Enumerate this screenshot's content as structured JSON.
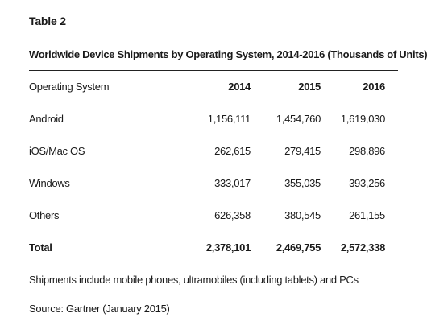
{
  "table": {
    "label": "Table 2",
    "title": "Worldwide Device Shipments by Operating System, 2014-2016 (Thousands of Units)",
    "columns": [
      "Operating System",
      "2014",
      "2015",
      "2016"
    ],
    "rows": [
      [
        "Android",
        "1,156,111",
        "1,454,760",
        "1,619,030"
      ],
      [
        "iOS/Mac OS",
        "262,615",
        "279,415",
        "298,896"
      ],
      [
        "Windows",
        "333,017",
        "355,035",
        "393,256"
      ],
      [
        "Others",
        "626,358",
        "380,545",
        "261,155"
      ]
    ],
    "total": [
      "Total",
      "2,378,101",
      "2,469,755",
      "2,572,338"
    ]
  },
  "footnote": "Shipments include mobile phones, ultramobiles (including tablets) and PCs",
  "source": "Source: Gartner (January 2015)"
}
